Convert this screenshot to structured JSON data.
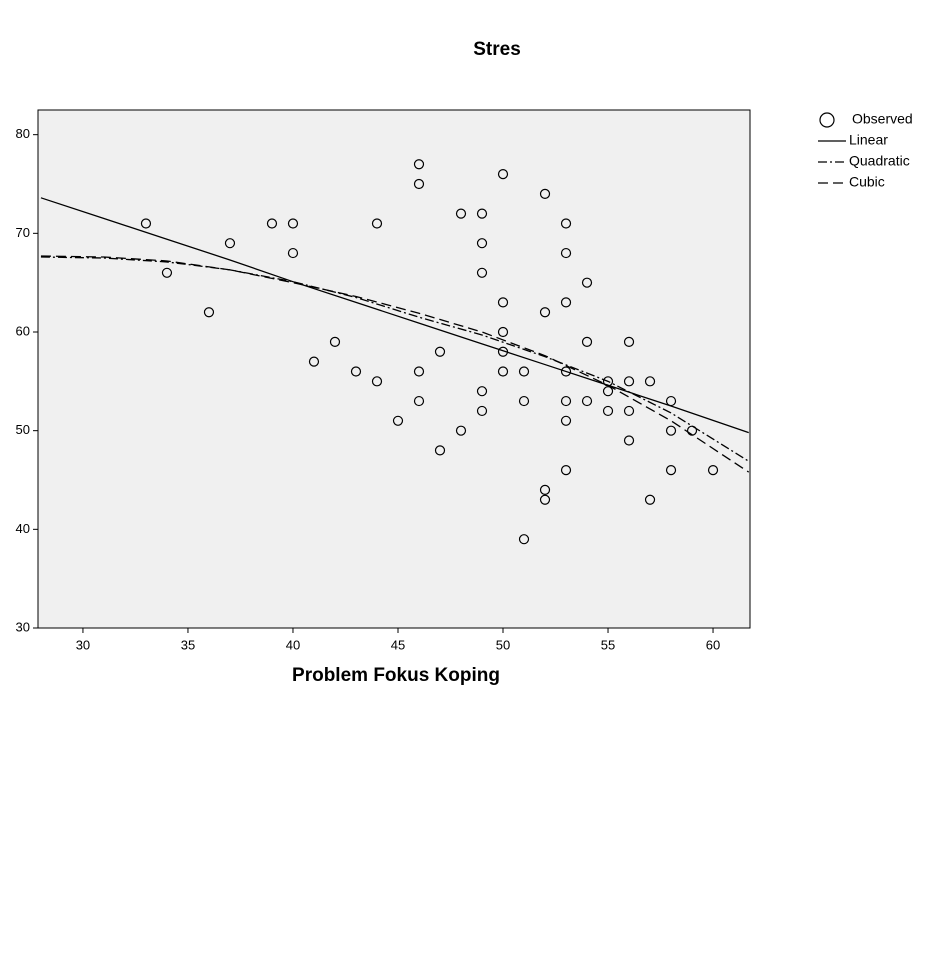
{
  "chart_data": {
    "type": "scatter",
    "title": "Stres",
    "x_label": "Problem Fokus Koping",
    "xlim": [
      27.86,
      61.76
    ],
    "ylim": [
      30,
      82.5
    ],
    "xticks": [
      30,
      35,
      40,
      45,
      50,
      55,
      60
    ],
    "yticks": [
      30,
      40,
      50,
      60,
      70,
      80
    ],
    "background": "#f0f0f0",
    "series": [
      {
        "name": "Observed",
        "type": "scatter",
        "color": "#000000",
        "x": [
          33,
          34,
          36,
          37,
          39,
          40,
          40,
          41,
          42,
          43,
          44,
          44,
          45,
          46,
          46,
          46,
          46,
          47,
          47,
          48,
          48,
          49,
          49,
          49,
          49,
          49,
          50,
          50,
          50,
          50,
          50,
          51,
          51,
          51,
          52,
          52,
          52,
          52,
          53,
          53,
          53,
          53,
          53,
          53,
          53,
          54,
          54,
          54,
          55,
          55,
          55,
          56,
          56,
          56,
          56,
          57,
          57,
          58,
          58,
          58,
          59,
          60
        ],
        "values": [
          71,
          66,
          62,
          69,
          71,
          71,
          68,
          57,
          59,
          56,
          71,
          55,
          51,
          77,
          75,
          56,
          53,
          58,
          48,
          72,
          50,
          72,
          69,
          66,
          54,
          52,
          76,
          63,
          60,
          58,
          56,
          56,
          53,
          39,
          74,
          62,
          44,
          43,
          71,
          68,
          63,
          56,
          53,
          51,
          46,
          65,
          59,
          53,
          55,
          54,
          52,
          59,
          55,
          52,
          49,
          55,
          43,
          53,
          50,
          46,
          50,
          46
        ]
      },
      {
        "name": "Linear",
        "type": "line",
        "color": "#000000",
        "dash": "none",
        "x": [
          28,
          31,
          34,
          37,
          40,
          43,
          46,
          49,
          52,
          55,
          58,
          61.7
        ],
        "values": [
          73.6,
          71.5,
          69.4,
          67.3,
          65.1,
          63.0,
          60.9,
          58.8,
          56.7,
          54.6,
          52.5,
          49.8
        ]
      },
      {
        "name": "Quadratic",
        "type": "line",
        "color": "#000000",
        "dash": "9 3 2 3",
        "x": [
          28,
          31,
          34,
          37,
          40,
          43,
          46,
          49,
          52,
          55,
          58,
          61.7
        ],
        "values": [
          67.6,
          67.5,
          67.1,
          66.3,
          65.1,
          63.5,
          61.5,
          59.7,
          57.5,
          55.0,
          51.8,
          46.9
        ]
      },
      {
        "name": "Cubic",
        "type": "line",
        "color": "#000000",
        "dash": "10 5",
        "x": [
          28,
          31,
          34,
          37,
          40,
          43,
          46,
          49,
          52,
          55,
          58,
          61.7
        ],
        "values": [
          67.7,
          67.6,
          67.2,
          66.3,
          65.0,
          63.6,
          61.9,
          60.0,
          57.6,
          54.6,
          51.0,
          45.8
        ]
      }
    ]
  }
}
